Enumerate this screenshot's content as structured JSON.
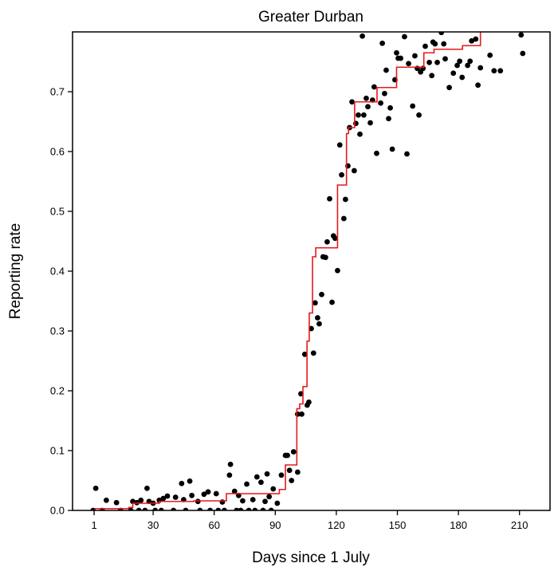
{
  "chart_data": {
    "type": "scatter",
    "title": "Greater Durban",
    "xlabel": "Days since 1 July",
    "ylabel": "Reporting rate",
    "xlim": [
      -9.6,
      225
    ],
    "ylim": [
      0,
      0.8
    ],
    "xticks": [
      1,
      30,
      60,
      90,
      120,
      150,
      180,
      210
    ],
    "yticks": [
      0.0,
      0.1,
      0.2,
      0.3,
      0.4,
      0.5,
      0.6,
      0.7
    ],
    "ytick_labels": [
      "0.0",
      "0.1",
      "0.2",
      "0.3",
      "0.4",
      "0.5",
      "0.6",
      "0.7"
    ],
    "grid": false,
    "legend": "none",
    "colors": {
      "points": "#000000",
      "fit_line": "#e41a1c",
      "axes": "#000000"
    },
    "points": [
      [
        1.8,
        0.037
      ],
      [
        7,
        0.017
      ],
      [
        12,
        0.013
      ],
      [
        20,
        0.015
      ],
      [
        24,
        0.017
      ],
      [
        27,
        0.037
      ],
      [
        28,
        0.015
      ],
      [
        33,
        0.017
      ],
      [
        37,
        0.024
      ],
      [
        41,
        0.022
      ],
      [
        44,
        0.045
      ],
      [
        48,
        0.049
      ],
      [
        49,
        0.025
      ],
      [
        55,
        0.027
      ],
      [
        57,
        0.031
      ],
      [
        61,
        0.028
      ],
      [
        68,
        0.077
      ],
      [
        67.5,
        0.059
      ],
      [
        70,
        0.032
      ],
      [
        74,
        0.016
      ],
      [
        76,
        0.044
      ],
      [
        81,
        0.056
      ],
      [
        83,
        0.047
      ],
      [
        86,
        0.061
      ],
      [
        87,
        0.023
      ],
      [
        89,
        0.036
      ],
      [
        91,
        0.012
      ],
      [
        93,
        0.059
      ],
      [
        95,
        0.092
      ],
      [
        96,
        0.092
      ],
      [
        99,
        0.098
      ],
      [
        97,
        0.067
      ],
      [
        101,
        0.064
      ],
      [
        98,
        0.05
      ],
      [
        22,
        0.013
      ],
      [
        30,
        0.012
      ],
      [
        35,
        0.02
      ],
      [
        45,
        0.018
      ],
      [
        52,
        0.015
      ],
      [
        64,
        0.014
      ],
      [
        72,
        0.025
      ],
      [
        79,
        0.018
      ],
      [
        85,
        0.015
      ],
      [
        0.5,
        0.0
      ],
      [
        5,
        0.0
      ],
      [
        14,
        0.0
      ],
      [
        19,
        0.0
      ],
      [
        23,
        0.0
      ],
      [
        26,
        0.0
      ],
      [
        31,
        0.0
      ],
      [
        34,
        0.0
      ],
      [
        40,
        0.0
      ],
      [
        46,
        0.0
      ],
      [
        53,
        0.0
      ],
      [
        58,
        0.0
      ],
      [
        62,
        0.0
      ],
      [
        65,
        0.0
      ],
      [
        71,
        0.0
      ],
      [
        73,
        0.0
      ],
      [
        77,
        0.0
      ],
      [
        80,
        0.0
      ],
      [
        84,
        0.0
      ],
      [
        88,
        0.0
      ],
      [
        102.6,
        0.195
      ],
      [
        101,
        0.161
      ],
      [
        103,
        0.161
      ],
      [
        106.5,
        0.181
      ],
      [
        105.7,
        0.176
      ],
      [
        104.5,
        0.261
      ],
      [
        108.8,
        0.263
      ],
      [
        107.7,
        0.304
      ],
      [
        111.6,
        0.312
      ],
      [
        110.8,
        0.322
      ],
      [
        109.6,
        0.347
      ],
      [
        112.8,
        0.361
      ],
      [
        117.9,
        0.348
      ],
      [
        113.5,
        0.424
      ],
      [
        114.7,
        0.423
      ],
      [
        120.6,
        0.401
      ],
      [
        115.5,
        0.449
      ],
      [
        118.6,
        0.459
      ],
      [
        119.4,
        0.455
      ],
      [
        123.7,
        0.488
      ],
      [
        124.5,
        0.52
      ],
      [
        116.7,
        0.521
      ],
      [
        122.6,
        0.561
      ],
      [
        125.7,
        0.576
      ],
      [
        128.8,
        0.568
      ],
      [
        121.7,
        0.611
      ],
      [
        139.8,
        0.597
      ],
      [
        126.5,
        0.64
      ],
      [
        129.6,
        0.647
      ],
      [
        131.6,
        0.629
      ],
      [
        130.8,
        0.661
      ],
      [
        133.5,
        0.661
      ],
      [
        135.5,
        0.675
      ],
      [
        136.7,
        0.648
      ],
      [
        134.7,
        0.689
      ],
      [
        137.8,
        0.686
      ],
      [
        127.7,
        0.683
      ],
      [
        138.6,
        0.708
      ],
      [
        141.8,
        0.681
      ],
      [
        143.7,
        0.697
      ],
      [
        146.5,
        0.673
      ],
      [
        145.7,
        0.655
      ],
      [
        144.5,
        0.736
      ],
      [
        148.8,
        0.72
      ],
      [
        147.5,
        0.604
      ],
      [
        154.7,
        0.596
      ],
      [
        157.5,
        0.676
      ],
      [
        160.6,
        0.661
      ],
      [
        155.5,
        0.747
      ],
      [
        158.6,
        0.76
      ],
      [
        149.6,
        0.765
      ],
      [
        150.4,
        0.756
      ],
      [
        151.6,
        0.756
      ],
      [
        159.8,
        0.739
      ],
      [
        161.4,
        0.733
      ],
      [
        162.6,
        0.739
      ],
      [
        166.9,
        0.727
      ],
      [
        165.7,
        0.749
      ],
      [
        169.6,
        0.749
      ],
      [
        163.7,
        0.776
      ],
      [
        167.5,
        0.783
      ],
      [
        168.5,
        0.78
      ],
      [
        172.8,
        0.78
      ],
      [
        173.5,
        0.755
      ],
      [
        177.5,
        0.731
      ],
      [
        175.5,
        0.707
      ],
      [
        179.4,
        0.744
      ],
      [
        180.6,
        0.751
      ],
      [
        181.8,
        0.724
      ],
      [
        184.5,
        0.744
      ],
      [
        185.7,
        0.751
      ],
      [
        190.8,
        0.74
      ],
      [
        189.6,
        0.711
      ],
      [
        186.5,
        0.785
      ],
      [
        188.5,
        0.788
      ],
      [
        195.5,
        0.761
      ],
      [
        197.5,
        0.735
      ],
      [
        200.6,
        0.735
      ],
      [
        132.8,
        0.793
      ],
      [
        142.6,
        0.781
      ],
      [
        153.5,
        0.792
      ],
      [
        171.6,
        0.799
      ],
      [
        210.8,
        0.795
      ],
      [
        211.6,
        0.764
      ]
    ],
    "fit_line": [
      [
        1,
        0.003
      ],
      [
        18,
        0.005
      ],
      [
        20,
        0.012
      ],
      [
        33,
        0.015
      ],
      [
        50,
        0.016
      ],
      [
        66,
        0.028
      ],
      [
        92,
        0.035
      ],
      [
        95,
        0.076
      ],
      [
        100.6,
        0.17
      ],
      [
        102,
        0.178
      ],
      [
        103.6,
        0.207
      ],
      [
        105.6,
        0.283
      ],
      [
        106.7,
        0.33
      ],
      [
        108.3,
        0.424
      ],
      [
        109.9,
        0.439
      ],
      [
        120.6,
        0.544
      ],
      [
        125,
        0.63
      ],
      [
        126,
        0.64
      ],
      [
        129,
        0.683
      ],
      [
        140,
        0.707
      ],
      [
        149.6,
        0.741
      ],
      [
        163,
        0.765
      ],
      [
        168,
        0.771
      ],
      [
        182,
        0.777
      ],
      [
        190.8,
        0.85
      ]
    ]
  }
}
